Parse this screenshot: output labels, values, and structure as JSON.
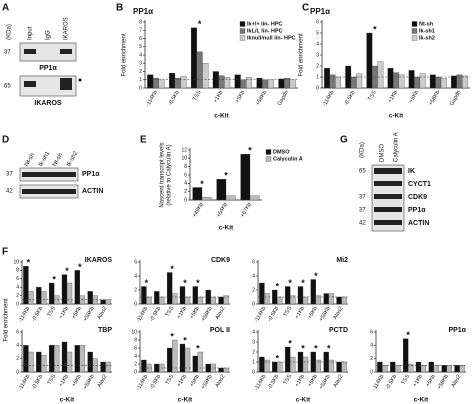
{
  "figure": {
    "panel_letters": [
      "A",
      "B",
      "C",
      "D",
      "E",
      "F",
      "G"
    ]
  },
  "blots": {
    "A": {
      "kda": "(KDa)",
      "lanes": [
        "Input",
        "IgG",
        "IKAROS"
      ],
      "markers": [
        "37",
        "65"
      ],
      "bands": [
        "PP1α",
        "IKAROS"
      ]
    },
    "D": {
      "lanes": [
        "Nt-sh",
        "Ik-sh1",
        "Nt-sh",
        "Ik-sh2"
      ],
      "markers": [
        "37",
        "42"
      ],
      "bands": [
        "PP1α",
        "ACTIN"
      ]
    },
    "G": {
      "kda": "(KDa)",
      "lanes": [
        "DMSO",
        "Calyculin A"
      ],
      "markers": [
        "65",
        "37",
        "37",
        "42"
      ],
      "bands": [
        "IK",
        "CYCT1",
        "CDK9",
        "PP1α",
        "ACTIN"
      ]
    }
  },
  "chart_data": [
    {
      "type": "bar",
      "title": "PP1α",
      "ylabel": [
        "Fold enrichment"
      ],
      "xlabel": "c-Kit",
      "categories": [
        "-114Kb",
        "-0.5Kb",
        "TSS",
        "+1Kb",
        "+5Kb",
        "+58Kb",
        "Gapdh"
      ],
      "series": [
        {
          "name": "Ik+/+ lin- HPC",
          "color": "#111111",
          "values": [
            1.6,
            1.8,
            7.3,
            2.0,
            1.6,
            1.2,
            1.1
          ]
        },
        {
          "name": "IkL/L lin- HPC",
          "color": "#777777",
          "values": [
            1.2,
            1.2,
            4.4,
            1.5,
            1.0,
            1.0,
            1.2
          ]
        },
        {
          "name": "Iknull/null lin- HPC",
          "color": "#cccccc",
          "values": [
            1.0,
            1.4,
            3.0,
            1.3,
            1.3,
            1.0,
            1.0
          ]
        }
      ],
      "ylim": [
        0,
        8
      ],
      "yticks": [
        0,
        1,
        2,
        3,
        4,
        5,
        6,
        7,
        8
      ],
      "hline": 1,
      "legend": "top-right",
      "annotations": [
        {
          "text": "*",
          "x": "TSS"
        }
      ]
    },
    {
      "type": "bar",
      "title": "PP1α",
      "ylabel": [
        "Fold enrichment"
      ],
      "xlabel": "c-Kit",
      "categories": [
        "-114Kb",
        "-0.5Kb",
        "TSS",
        "+1Kb",
        "+5Kb",
        "+58Kb",
        "Gapdh"
      ],
      "series": [
        {
          "name": "Nt-sh",
          "color": "#111111",
          "values": [
            1.8,
            2.0,
            5.0,
            1.8,
            1.6,
            1.2,
            1.1
          ]
        },
        {
          "name": "Ik-sh1",
          "color": "#777777",
          "values": [
            1.2,
            1.0,
            2.0,
            1.4,
            1.0,
            1.0,
            1.2
          ]
        },
        {
          "name": "Ik-sh2",
          "color": "#cccccc",
          "values": [
            1.0,
            1.3,
            2.4,
            1.2,
            1.3,
            0.9,
            1.1
          ]
        }
      ],
      "ylim": [
        0,
        6
      ],
      "yticks": [
        0,
        1,
        2,
        3,
        4,
        5,
        6
      ],
      "hline": 1,
      "legend": "top-right",
      "annotations": [
        {
          "text": "*",
          "x": "TSS"
        }
      ]
    },
    {
      "type": "bar",
      "ylabel": [
        "Nascent transcript levels",
        "(relative to Calyculin A)"
      ],
      "xlabel": "c-Kit",
      "categories": [
        "+49Kb",
        "+54Kb",
        "+67Kb"
      ],
      "series": [
        {
          "name": "DMSO",
          "color": "#111111",
          "values": [
            3,
            5,
            11
          ]
        },
        {
          "name": "Calyculin A",
          "color": "#bbbbbb",
          "values": [
            0.7,
            1,
            1
          ]
        }
      ],
      "ylim": [
        0,
        12
      ],
      "yticks": [
        0,
        2,
        4,
        6,
        8,
        10,
        12
      ],
      "legend": "top-right",
      "annotations": [
        {
          "text": "*",
          "x": "+49Kb"
        },
        {
          "text": "*",
          "x": "+54Kb"
        },
        {
          "text": "*",
          "x": "+67Kb"
        }
      ]
    },
    {
      "type": "bar",
      "title": "IKAROS",
      "ylabel": [
        "Fold enrichment"
      ],
      "categories": [
        "-114Kb",
        "-0.5Kb",
        "TSS",
        "+1Kb",
        "+5Kb",
        "+58Kb",
        "Alas2"
      ],
      "series": [
        {
          "name": "DMSO",
          "color": "#111111",
          "values": [
            9,
            4,
            5,
            7,
            8,
            3,
            1
          ]
        },
        {
          "name": "Calyculin A",
          "color": "#bbbbbb",
          "values": [
            3,
            3,
            2,
            5,
            2,
            2,
            1
          ]
        }
      ],
      "ylim": [
        0,
        10
      ],
      "yticks": [
        0,
        2,
        4,
        6,
        8,
        10
      ],
      "hline": 1,
      "annotations": [
        {
          "text": "*",
          "x": "-114Kb"
        },
        {
          "text": "*",
          "x": "TSS"
        },
        {
          "text": "*",
          "x": "+1Kb"
        },
        {
          "text": "*",
          "x": "+5Kb"
        }
      ]
    },
    {
      "type": "bar",
      "title": "CDK9",
      "categories": [
        "-114Kb",
        "-0.5Kb",
        "TSS",
        "+1Kb",
        "+5Kb",
        "+58Kb",
        "Alas2"
      ],
      "series": [
        {
          "name": "DMSO",
          "color": "#111111",
          "values": [
            2.5,
            1.8,
            4.5,
            2.5,
            2.5,
            2,
            1
          ]
        },
        {
          "name": "Calyculin A",
          "color": "#bbbbbb",
          "values": [
            1,
            1,
            1.5,
            1,
            1,
            1,
            1.2
          ]
        }
      ],
      "ylim": [
        0,
        6
      ],
      "yticks": [
        0,
        2,
        4,
        6
      ],
      "hline": 1,
      "annotations": [
        {
          "text": "*",
          "x": "-114Kb"
        },
        {
          "text": "*",
          "x": "TSS"
        },
        {
          "text": "*",
          "x": "+1Kb"
        },
        {
          "text": "*",
          "x": "+5Kb"
        }
      ]
    },
    {
      "type": "bar",
      "title": "Mi2",
      "categories": [
        "-114Kb",
        "-0.5Kb",
        "TSS",
        "+1Kb",
        "+5Kb",
        "+58Kb",
        "Alas2"
      ],
      "series": [
        {
          "name": "DMSO",
          "color": "#111111",
          "values": [
            3,
            2,
            2.5,
            2.5,
            3.5,
            1.5,
            1
          ]
        },
        {
          "name": "Calyculin A",
          "color": "#bbbbbb",
          "values": [
            1.5,
            1,
            1.2,
            1,
            1.2,
            1.5,
            1
          ]
        }
      ],
      "ylim": [
        0,
        6
      ],
      "yticks": [
        0,
        2,
        4,
        6
      ],
      "hline": 1,
      "legend": "right",
      "annotations": [
        {
          "text": "*",
          "x": "-0.5Kb"
        },
        {
          "text": "*",
          "x": "TSS"
        },
        {
          "text": "*",
          "x": "+1Kb"
        },
        {
          "text": "*",
          "x": "+5Kb"
        }
      ]
    },
    {
      "type": "bar",
      "title": "TBP",
      "xlabel": "c-Kit",
      "categories": [
        "-114Kb",
        "-0.5Kb",
        "TSS",
        "+1Kb",
        "+5Kb",
        "+58Kb",
        "Alas2"
      ],
      "series": [
        {
          "name": "DMSO",
          "color": "#111111",
          "values": [
            4,
            3,
            4,
            4.5,
            4,
            3,
            1.5
          ]
        },
        {
          "name": "Calyculin A",
          "color": "#bbbbbb",
          "values": [
            3,
            2.5,
            4,
            3,
            4,
            2,
            1.5
          ]
        }
      ],
      "ylim": [
        0,
        6
      ],
      "yticks": [
        0,
        2,
        4,
        6
      ],
      "hline": 1
    },
    {
      "type": "bar",
      "title": "POL II",
      "xlabel": "c-Kit",
      "categories": [
        "-114Kb",
        "-0.5Kb",
        "TSS",
        "+1Kb",
        "+5Kb",
        "+58Kb",
        "Alas2"
      ],
      "series": [
        {
          "name": "DMSO",
          "color": "#111111",
          "values": [
            3,
            2,
            6,
            7,
            4,
            2,
            1
          ]
        },
        {
          "name": "Calyculin A",
          "color": "#bbbbbb",
          "values": [
            2,
            2,
            8,
            6,
            5,
            2,
            1
          ]
        }
      ],
      "ylim": [
        0,
        10
      ],
      "yticks": [
        0,
        2,
        4,
        6,
        8,
        10
      ],
      "hline": 1,
      "annotations": [
        {
          "text": "*",
          "x": "TSS"
        },
        {
          "text": "*",
          "x": "+1Kb"
        },
        {
          "text": "*",
          "x": "+5Kb"
        }
      ]
    },
    {
      "type": "bar",
      "title": "PCTD",
      "xlabel": "c-Kit",
      "categories": [
        "-114Kb",
        "-0.5Kb",
        "TSS",
        "+1Kb",
        "+5Kb",
        "+58Kb",
        "Alas2"
      ],
      "series": [
        {
          "name": "DMSO",
          "color": "#111111",
          "values": [
            1.5,
            1,
            2.5,
            2,
            2,
            2,
            1
          ]
        },
        {
          "name": "Calyculin A",
          "color": "#bbbbbb",
          "values": [
            1.2,
            1,
            1.5,
            1.5,
            1.2,
            1.2,
            1
          ]
        }
      ],
      "ylim": [
        0,
        4
      ],
      "yticks": [
        0,
        1,
        2,
        3,
        4
      ],
      "hline": 1,
      "annotations": [
        {
          "text": "*",
          "x": "-0.5Kb"
        },
        {
          "text": "*",
          "x": "TSS"
        },
        {
          "text": "*",
          "x": "+1Kb"
        },
        {
          "text": "*",
          "x": "+5Kb"
        },
        {
          "text": "*",
          "x": "+58Kb"
        }
      ]
    },
    {
      "type": "bar",
      "title": "PP1α",
      "xlabel": "c-Kit",
      "categories": [
        "-114Kb",
        "-0.5Kb",
        "TSS",
        "+1Kb",
        "+5Kb",
        "+58Kb",
        "Alas2"
      ],
      "series": [
        {
          "name": "DMSO",
          "color": "#111111",
          "values": [
            1.5,
            1.5,
            5,
            1.5,
            1.5,
            1,
            1
          ]
        },
        {
          "name": "Calyculin A",
          "color": "#bbbbbb",
          "values": [
            1,
            1,
            1.2,
            1,
            1,
            1,
            1
          ]
        }
      ],
      "ylim": [
        0,
        6
      ],
      "yticks": [
        0,
        2,
        4,
        6
      ],
      "hline": 1,
      "annotations": [
        {
          "text": "*",
          "x": "TSS"
        }
      ]
    }
  ]
}
